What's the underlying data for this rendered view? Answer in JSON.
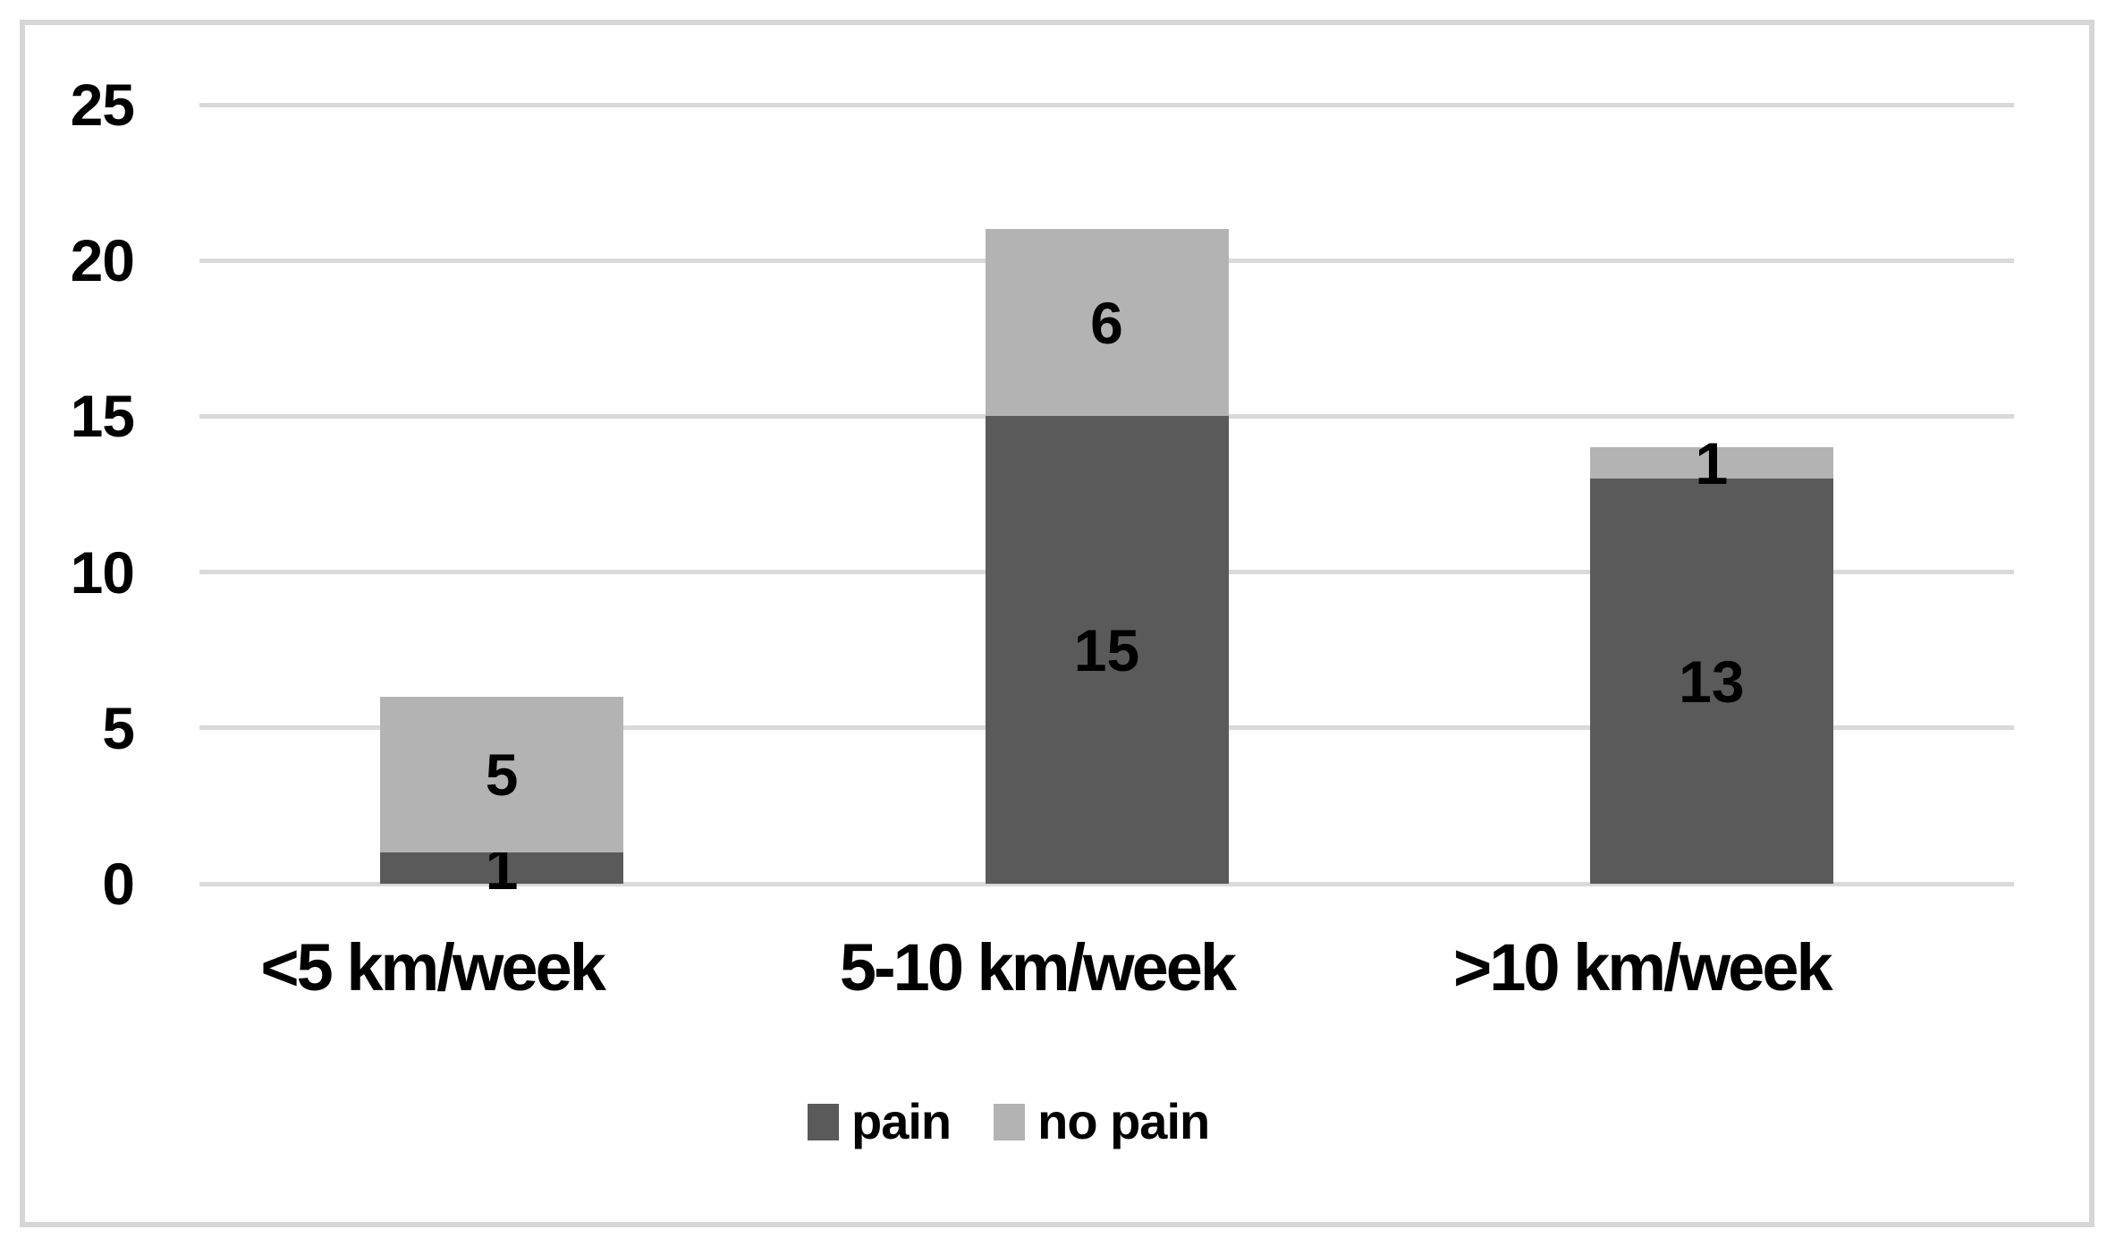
{
  "chart_data": {
    "type": "bar",
    "stacked": true,
    "title": "",
    "xlabel": "",
    "ylabel": "",
    "categories": [
      "<5 km/week",
      "5-10 km/week",
      ">10 km/week"
    ],
    "series": [
      {
        "name": "pain",
        "color": "#5a5a5a",
        "values": [
          1,
          15,
          13
        ]
      },
      {
        "name": "no pain",
        "color": "#b3b3b3",
        "values": [
          5,
          6,
          1
        ]
      }
    ],
    "data_labels_shown": true,
    "y_ticks": [
      0,
      5,
      10,
      15,
      20,
      25
    ],
    "ylim": [
      0,
      25
    ],
    "grid": true,
    "gridline_color": "#d9d9d9",
    "frame_border_color": "#d6d6d6",
    "legend_position": "bottom",
    "legend_entries": [
      "pain",
      "no pain"
    ]
  }
}
